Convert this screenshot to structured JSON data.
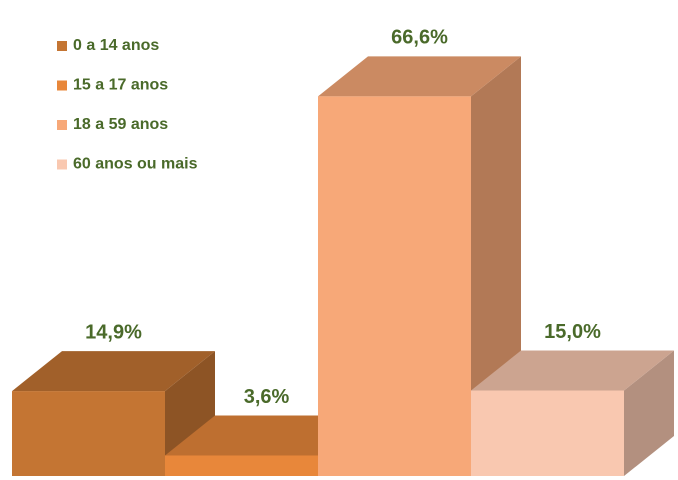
{
  "chart_data": {
    "type": "bar3d",
    "series": [
      {
        "name": "0 a 14 anos",
        "color": "#c47533",
        "values": [
          14.9
        ],
        "value_labels": [
          "14,9%"
        ]
      },
      {
        "name": "15 a 17 anos",
        "color": "#e8873a",
        "values": [
          3.6
        ],
        "value_labels": [
          "3,6%"
        ]
      },
      {
        "name": "18 a 59 anos",
        "color": "#f7a878",
        "values": [
          66.6
        ],
        "value_labels": [
          "66,6%"
        ]
      },
      {
        "name": "60 anos ou mais",
        "color": "#f9c8b0",
        "values": [
          15.0
        ],
        "value_labels": [
          "15,0%"
        ]
      }
    ],
    "label_color": "#4a6a2a"
  }
}
